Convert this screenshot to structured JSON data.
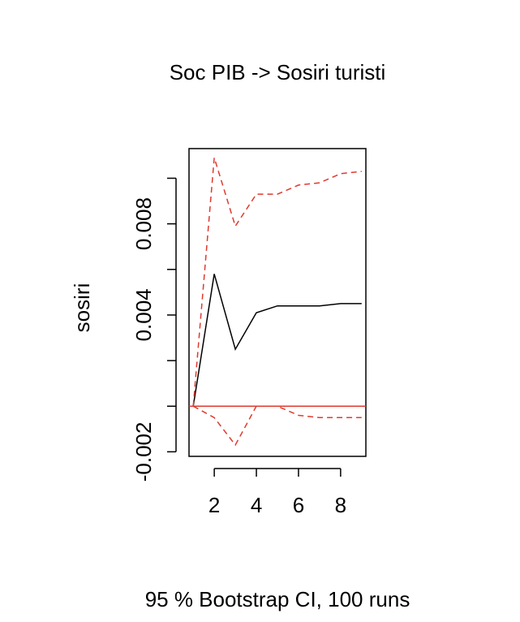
{
  "chart_data": {
    "type": "line",
    "title": "Soc PIB -> Sosiri turisti",
    "ylabel": "sosiri",
    "xlabel": "",
    "footer": "95 % Bootstrap CI,  100 runs",
    "xlim": [
      0.8,
      9.2
    ],
    "ylim": [
      -0.0022,
      0.0113
    ],
    "x_ticks": [
      2,
      4,
      6,
      8
    ],
    "x_tick_labels": [
      "2",
      "4",
      "6",
      "8"
    ],
    "y_ticks": [
      -0.002,
      0.0,
      0.002,
      0.004,
      0.006,
      0.008,
      0.01
    ],
    "y_tick_labels": [
      "-0.002",
      "",
      "",
      "0.004",
      "",
      "0.008",
      ""
    ],
    "x": [
      1,
      2,
      3,
      4,
      5,
      6,
      7,
      8,
      9
    ],
    "series": [
      {
        "role": "response",
        "color": "#000000",
        "dash": "solid",
        "values": [
          0.0,
          0.0058,
          0.0025,
          0.0041,
          0.0044,
          0.0044,
          0.0044,
          0.0045,
          0.0045
        ]
      },
      {
        "role": "upper",
        "color": "#df3a2e",
        "dash": "dashed",
        "values": [
          0.0,
          0.0109,
          0.0079,
          0.0093,
          0.0093,
          0.0097,
          0.0098,
          0.0102,
          0.0103
        ]
      },
      {
        "role": "lower",
        "color": "#df3a2e",
        "dash": "dashed",
        "values": [
          0.0,
          -0.0005,
          -0.0017,
          0.0,
          0.0,
          -0.0004,
          -0.0005,
          -0.0005,
          -0.0005
        ]
      }
    ],
    "zero_line": {
      "value": 0,
      "color": "#df3a2e"
    },
    "grid": false,
    "legend": "none"
  }
}
